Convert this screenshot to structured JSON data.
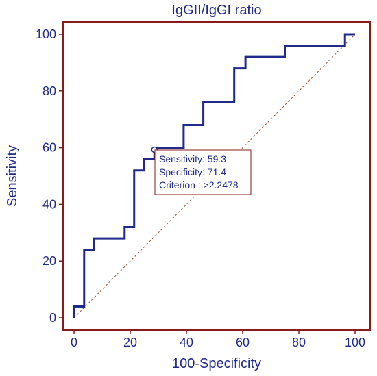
{
  "chart_data": {
    "type": "line",
    "title": "IgGII/IgGI ratio",
    "xlabel": "100-Specificity",
    "ylabel": "Sensitivity",
    "xlim": [
      0,
      100
    ],
    "ylim": [
      0,
      100
    ],
    "xticks": [
      0,
      20,
      40,
      60,
      80,
      100
    ],
    "yticks": [
      0,
      20,
      40,
      60,
      80,
      100
    ],
    "series": [
      {
        "color": "#1f2a8a",
        "step": true,
        "points": [
          [
            0,
            0
          ],
          [
            0,
            4
          ],
          [
            3.6,
            4
          ],
          [
            3.6,
            24
          ],
          [
            7,
            24
          ],
          [
            7,
            28
          ],
          [
            18,
            28
          ],
          [
            18,
            32
          ],
          [
            21.4,
            32
          ],
          [
            21.4,
            52
          ],
          [
            25,
            52
          ],
          [
            25,
            56
          ],
          [
            28.6,
            56
          ],
          [
            28.6,
            60
          ],
          [
            39,
            60
          ],
          [
            39,
            68
          ],
          [
            46,
            68
          ],
          [
            46,
            76
          ],
          [
            57,
            76
          ],
          [
            57,
            88
          ],
          [
            61,
            88
          ],
          [
            61,
            92
          ],
          [
            75,
            92
          ],
          [
            75,
            96
          ],
          [
            96.4,
            96
          ],
          [
            96.4,
            100
          ],
          [
            100,
            100
          ]
        ]
      }
    ],
    "reference_line": {
      "from": [
        0,
        0
      ],
      "to": [
        100,
        100
      ],
      "style": "dashed",
      "color": "#a0522d"
    },
    "highlight_point": {
      "x": 28.6,
      "y": 59.3
    },
    "annotation": {
      "sensitivity": "Sensitivity: 59.3",
      "specificity": "Specificity: 71.4",
      "criterion": "Criterion : >2.2478"
    },
    "frame_color": "#8b1a1a",
    "grid": false
  }
}
